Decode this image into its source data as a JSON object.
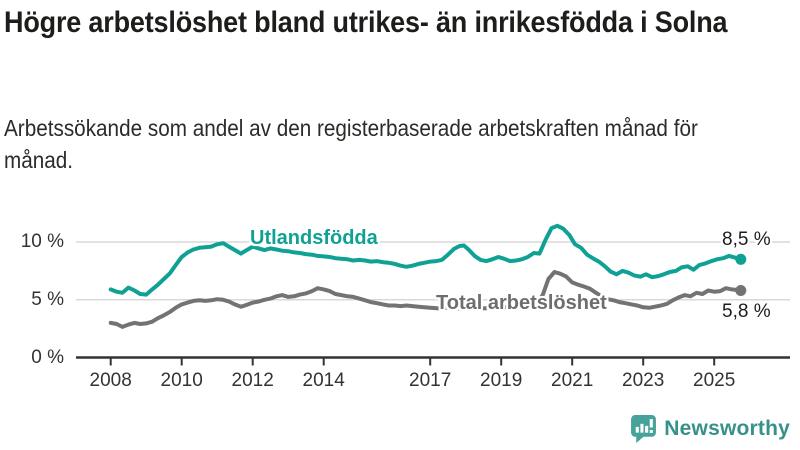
{
  "chart_data": {
    "type": "line",
    "title": "Högre arbetslöshet bland utrikes- än inrikesfödda i Solna",
    "subtitle": "Arbetssökande som andel av den registerbaserade arbetskraften månad för månad.",
    "unit": "%",
    "x_axis": {
      "ticks": [
        2008,
        2010,
        2012,
        2014,
        2017,
        2019,
        2021,
        2023,
        2025
      ],
      "range": [
        2008,
        2025.9
      ]
    },
    "y_axis": {
      "ticks": [
        {
          "value": 0,
          "label": "0 %"
        },
        {
          "value": 5,
          "label": "5 %"
        },
        {
          "value": 10,
          "label": "10 %"
        }
      ],
      "range": [
        0,
        12.3
      ]
    },
    "grid": "horizontal",
    "legend": "inline-series-labels",
    "series": [
      {
        "name": "Utlandsfödda",
        "color": "#0fa294",
        "label_color": "#0fa294",
        "end_label": "8,5 %",
        "end_value": 8.5,
        "points": [
          [
            2008.0,
            5.9
          ],
          [
            2008.17,
            5.7
          ],
          [
            2008.33,
            5.6
          ],
          [
            2008.5,
            6.05
          ],
          [
            2008.67,
            5.8
          ],
          [
            2008.83,
            5.5
          ],
          [
            2009.0,
            5.45
          ],
          [
            2009.17,
            5.9
          ],
          [
            2009.33,
            6.3
          ],
          [
            2009.5,
            6.8
          ],
          [
            2009.67,
            7.3
          ],
          [
            2009.83,
            8.0
          ],
          [
            2010.0,
            8.7
          ],
          [
            2010.17,
            9.1
          ],
          [
            2010.33,
            9.35
          ],
          [
            2010.5,
            9.5
          ],
          [
            2010.67,
            9.55
          ],
          [
            2010.83,
            9.6
          ],
          [
            2011.0,
            9.8
          ],
          [
            2011.17,
            9.9
          ],
          [
            2011.33,
            9.6
          ],
          [
            2011.5,
            9.3
          ],
          [
            2011.67,
            9.0
          ],
          [
            2011.83,
            9.3
          ],
          [
            2012.0,
            9.6
          ],
          [
            2012.17,
            9.45
          ],
          [
            2012.33,
            9.3
          ],
          [
            2012.5,
            9.45
          ],
          [
            2012.67,
            9.35
          ],
          [
            2012.83,
            9.25
          ],
          [
            2013.0,
            9.2
          ],
          [
            2013.17,
            9.1
          ],
          [
            2013.33,
            9.05
          ],
          [
            2013.5,
            8.95
          ],
          [
            2013.67,
            8.9
          ],
          [
            2013.83,
            8.8
          ],
          [
            2014.0,
            8.75
          ],
          [
            2014.17,
            8.7
          ],
          [
            2014.33,
            8.6
          ],
          [
            2014.5,
            8.55
          ],
          [
            2014.67,
            8.5
          ],
          [
            2014.83,
            8.4
          ],
          [
            2015.0,
            8.45
          ],
          [
            2015.17,
            8.4
          ],
          [
            2015.33,
            8.3
          ],
          [
            2015.5,
            8.35
          ],
          [
            2015.67,
            8.25
          ],
          [
            2015.83,
            8.2
          ],
          [
            2016.0,
            8.1
          ],
          [
            2016.17,
            7.95
          ],
          [
            2016.33,
            7.85
          ],
          [
            2016.5,
            7.95
          ],
          [
            2016.67,
            8.1
          ],
          [
            2016.83,
            8.2
          ],
          [
            2017.0,
            8.3
          ],
          [
            2017.17,
            8.35
          ],
          [
            2017.33,
            8.45
          ],
          [
            2017.5,
            8.9
          ],
          [
            2017.67,
            9.4
          ],
          [
            2017.83,
            9.65
          ],
          [
            2017.95,
            9.7
          ],
          [
            2018.08,
            9.35
          ],
          [
            2018.25,
            8.8
          ],
          [
            2018.42,
            8.45
          ],
          [
            2018.58,
            8.35
          ],
          [
            2018.75,
            8.5
          ],
          [
            2018.92,
            8.7
          ],
          [
            2019.08,
            8.55
          ],
          [
            2019.25,
            8.35
          ],
          [
            2019.42,
            8.4
          ],
          [
            2019.58,
            8.5
          ],
          [
            2019.75,
            8.7
          ],
          [
            2019.92,
            9.05
          ],
          [
            2020.08,
            9.0
          ],
          [
            2020.25,
            10.2
          ],
          [
            2020.42,
            11.2
          ],
          [
            2020.58,
            11.4
          ],
          [
            2020.75,
            11.15
          ],
          [
            2020.92,
            10.6
          ],
          [
            2021.08,
            9.8
          ],
          [
            2021.25,
            9.5
          ],
          [
            2021.42,
            8.9
          ],
          [
            2021.58,
            8.6
          ],
          [
            2021.75,
            8.3
          ],
          [
            2021.92,
            7.9
          ],
          [
            2022.08,
            7.45
          ],
          [
            2022.25,
            7.2
          ],
          [
            2022.42,
            7.5
          ],
          [
            2022.58,
            7.35
          ],
          [
            2022.75,
            7.1
          ],
          [
            2022.92,
            7.0
          ],
          [
            2023.08,
            7.2
          ],
          [
            2023.25,
            6.95
          ],
          [
            2023.42,
            7.05
          ],
          [
            2023.58,
            7.2
          ],
          [
            2023.75,
            7.4
          ],
          [
            2023.92,
            7.5
          ],
          [
            2024.08,
            7.8
          ],
          [
            2024.25,
            7.9
          ],
          [
            2024.42,
            7.6
          ],
          [
            2024.58,
            8.0
          ],
          [
            2024.75,
            8.15
          ],
          [
            2024.92,
            8.35
          ],
          [
            2025.08,
            8.5
          ],
          [
            2025.25,
            8.6
          ],
          [
            2025.42,
            8.8
          ],
          [
            2025.58,
            8.65
          ],
          [
            2025.75,
            8.5
          ]
        ]
      },
      {
        "name": "Total arbetslöshet",
        "color": "#737373",
        "label_color": "#6e6e6e",
        "end_label": "5,8 %",
        "end_value": 5.8,
        "points": [
          [
            2008.0,
            3.0
          ],
          [
            2008.17,
            2.9
          ],
          [
            2008.33,
            2.65
          ],
          [
            2008.5,
            2.85
          ],
          [
            2008.67,
            3.0
          ],
          [
            2008.83,
            2.9
          ],
          [
            2009.0,
            2.95
          ],
          [
            2009.17,
            3.1
          ],
          [
            2009.33,
            3.4
          ],
          [
            2009.5,
            3.65
          ],
          [
            2009.67,
            3.95
          ],
          [
            2009.83,
            4.3
          ],
          [
            2010.0,
            4.6
          ],
          [
            2010.17,
            4.75
          ],
          [
            2010.33,
            4.9
          ],
          [
            2010.5,
            4.95
          ],
          [
            2010.67,
            4.9
          ],
          [
            2010.83,
            4.95
          ],
          [
            2011.0,
            5.05
          ],
          [
            2011.17,
            5.0
          ],
          [
            2011.33,
            4.85
          ],
          [
            2011.5,
            4.6
          ],
          [
            2011.67,
            4.4
          ],
          [
            2011.83,
            4.55
          ],
          [
            2012.0,
            4.75
          ],
          [
            2012.17,
            4.85
          ],
          [
            2012.33,
            5.0
          ],
          [
            2012.5,
            5.1
          ],
          [
            2012.67,
            5.3
          ],
          [
            2012.83,
            5.4
          ],
          [
            2013.0,
            5.25
          ],
          [
            2013.17,
            5.3
          ],
          [
            2013.33,
            5.45
          ],
          [
            2013.5,
            5.55
          ],
          [
            2013.67,
            5.75
          ],
          [
            2013.83,
            6.0
          ],
          [
            2014.0,
            5.9
          ],
          [
            2014.17,
            5.75
          ],
          [
            2014.33,
            5.5
          ],
          [
            2014.5,
            5.4
          ],
          [
            2014.67,
            5.3
          ],
          [
            2014.83,
            5.25
          ],
          [
            2015.0,
            5.1
          ],
          [
            2015.17,
            4.95
          ],
          [
            2015.33,
            4.8
          ],
          [
            2015.5,
            4.7
          ],
          [
            2015.67,
            4.6
          ],
          [
            2015.83,
            4.5
          ],
          [
            2016.0,
            4.5
          ],
          [
            2016.17,
            4.45
          ],
          [
            2016.33,
            4.5
          ],
          [
            2016.5,
            4.45
          ],
          [
            2016.67,
            4.4
          ],
          [
            2016.83,
            4.35
          ],
          [
            2017.0,
            4.3
          ],
          [
            2017.25,
            4.25
          ],
          [
            2017.5,
            4.3
          ],
          [
            2017.75,
            4.25
          ],
          [
            2018.0,
            4.2
          ],
          [
            2018.25,
            4.3
          ],
          [
            2018.5,
            4.25
          ],
          [
            2018.75,
            4.3
          ],
          [
            2019.0,
            4.35
          ],
          [
            2019.25,
            4.4
          ],
          [
            2019.5,
            4.4
          ],
          [
            2019.75,
            4.5
          ],
          [
            2020.0,
            4.7
          ],
          [
            2020.17,
            5.4
          ],
          [
            2020.33,
            6.8
          ],
          [
            2020.5,
            7.4
          ],
          [
            2020.67,
            7.25
          ],
          [
            2020.83,
            7.0
          ],
          [
            2021.0,
            6.5
          ],
          [
            2021.17,
            6.3
          ],
          [
            2021.33,
            6.15
          ],
          [
            2021.5,
            5.95
          ],
          [
            2021.67,
            5.6
          ],
          [
            2021.83,
            5.3
          ],
          [
            2022.0,
            5.05
          ],
          [
            2022.17,
            4.95
          ],
          [
            2022.33,
            4.8
          ],
          [
            2022.5,
            4.7
          ],
          [
            2022.67,
            4.6
          ],
          [
            2022.83,
            4.5
          ],
          [
            2023.0,
            4.35
          ],
          [
            2023.17,
            4.3
          ],
          [
            2023.33,
            4.4
          ],
          [
            2023.5,
            4.5
          ],
          [
            2023.67,
            4.65
          ],
          [
            2023.83,
            4.95
          ],
          [
            2024.0,
            5.2
          ],
          [
            2024.17,
            5.4
          ],
          [
            2024.33,
            5.3
          ],
          [
            2024.5,
            5.6
          ],
          [
            2024.67,
            5.5
          ],
          [
            2024.83,
            5.8
          ],
          [
            2025.0,
            5.7
          ],
          [
            2025.17,
            5.75
          ],
          [
            2025.33,
            6.0
          ],
          [
            2025.5,
            5.9
          ],
          [
            2025.75,
            5.8
          ]
        ]
      }
    ]
  },
  "colors": {
    "grid": "#d9d9d9",
    "axis": "#333333",
    "tick_text": "#333333",
    "title_text": "#1d1d1b",
    "accent_teal": "#0fa294",
    "line_gray": "#737373",
    "background": "#ffffff"
  },
  "footer": {
    "brand": "Newsworthy",
    "logo_icon": "speech-bubble-bar-chart-icon",
    "logo_color": "#45a39b",
    "text_color": "#37918b"
  }
}
